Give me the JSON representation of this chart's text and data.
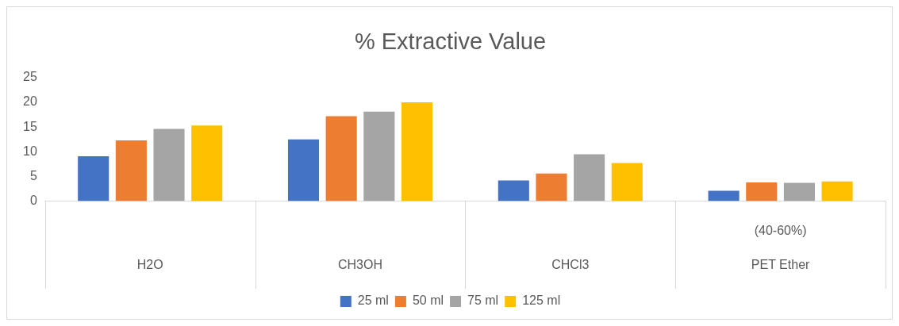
{
  "chart_data": {
    "type": "bar",
    "title": "% Extractive Value",
    "categories": [
      "H2O",
      "CH3OH",
      "CHCl3",
      "(40-60%)\nPET Ether"
    ],
    "series": [
      {
        "name": "25 ml",
        "color": "#4472c4",
        "values": [
          9.1,
          12.5,
          4.2,
          2.1
        ]
      },
      {
        "name": "50 ml",
        "color": "#ed7d31",
        "values": [
          12.3,
          17.2,
          5.6,
          3.8
        ]
      },
      {
        "name": "75 ml",
        "color": "#a5a5a5",
        "values": [
          14.6,
          18.1,
          9.5,
          3.7
        ]
      },
      {
        "name": "125 ml",
        "color": "#ffc000",
        "values": [
          15.3,
          20,
          7.7,
          4
        ]
      }
    ],
    "ylim": [
      0,
      25
    ],
    "yticks": [
      0,
      5,
      10,
      15,
      20,
      25
    ],
    "grid": false,
    "legend": "bottom"
  }
}
